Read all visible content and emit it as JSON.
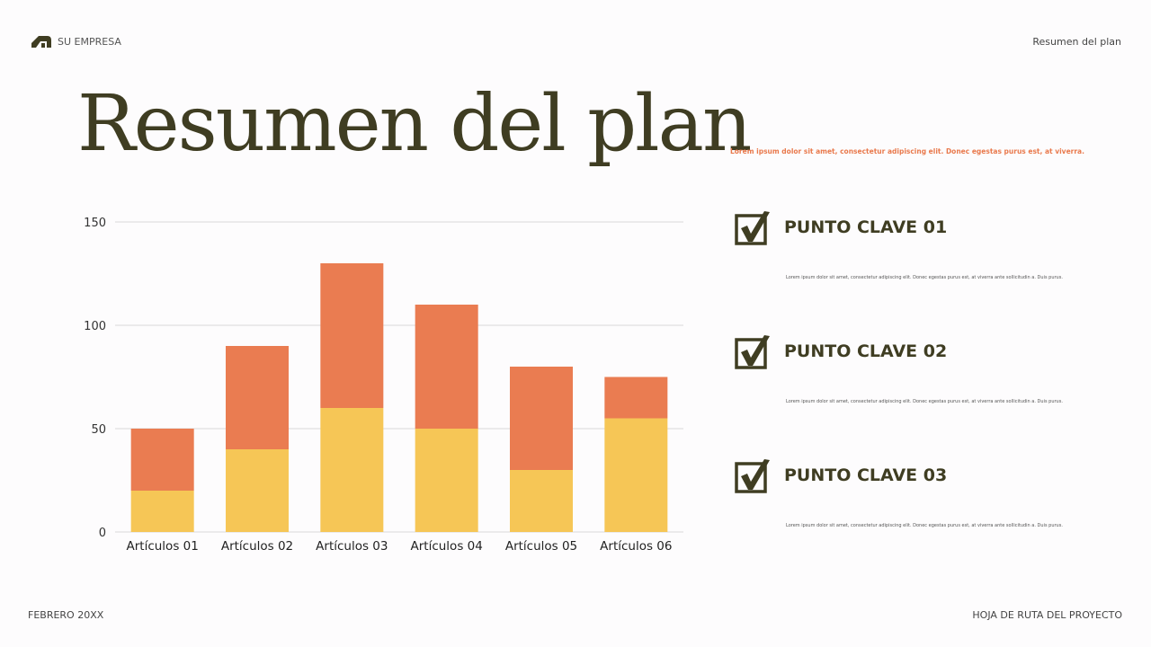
{
  "header": {
    "company": "SU EMPRESA",
    "section": "Resumen del plan"
  },
  "title": "Resumen del plan",
  "subtitle": "Lorem ipsum dolor sit amet, consectetur adipiscing elit. Donec egestas purus est, at viverra.",
  "key_points": [
    {
      "label": "PUNTO CLAVE 01",
      "text": "Lorem ipsum dolor sit amet, consectetur adipiscing elit. Donec egestas purus est, at viverra ante sollicitudin a. Duis purus.",
      "icon": "checkbox-check-icon"
    },
    {
      "label": "PUNTO CLAVE 02",
      "text": "Lorem ipsum dolor sit amet, consectetur adipiscing elit. Donec egestas purus est, at viverra ante sollicitudin a. Duis purus.",
      "icon": "checkbox-check-icon"
    },
    {
      "label": "PUNTO CLAVE 03",
      "text": "Lorem ipsum dolor sit amet, consectetur adipiscing elit. Donec egestas purus est, at viverra ante sollicitudin a. Duis purus.",
      "icon": "checkbox-check-icon"
    }
  ],
  "footer": {
    "date": "FEBRERO 20XX",
    "project": "HOJA DE RUTA DEL PROYECTO"
  },
  "chart_data": {
    "type": "bar",
    "stacked": true,
    "categories": [
      "Artículos 01",
      "Artículos 02",
      "Artículos 03",
      "Artículos 04",
      "Artículos 05",
      "Artículos 06"
    ],
    "series": [
      {
        "values": [
          20,
          40,
          60,
          50,
          30,
          55
        ],
        "color": "#f6c656"
      },
      {
        "values": [
          30,
          50,
          70,
          60,
          50,
          20
        ],
        "color": "#ea7c51"
      }
    ],
    "ylim": [
      0,
      150
    ],
    "yticks": [
      0,
      50,
      100,
      150
    ],
    "grid": true,
    "legend": "none"
  }
}
